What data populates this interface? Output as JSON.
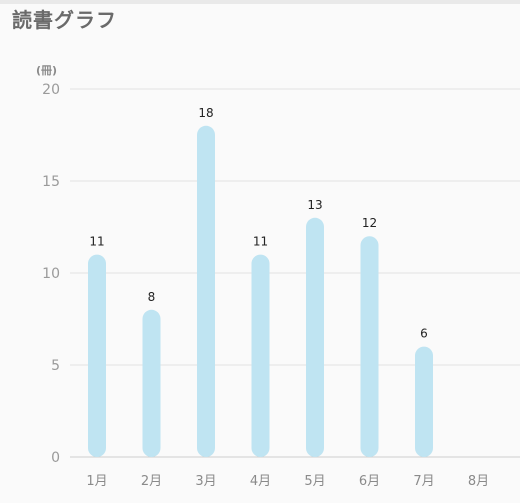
{
  "title": "読書グラフ",
  "chart_data": {
    "type": "bar",
    "title": "読書グラフ",
    "ylabel": "(冊)",
    "xlabel": "",
    "ylim": [
      0,
      20
    ],
    "yticks": [
      0,
      5,
      10,
      15,
      20
    ],
    "categories": [
      "1月",
      "2月",
      "3月",
      "4月",
      "5月",
      "6月",
      "7月",
      "8月"
    ],
    "values": [
      11,
      8,
      18,
      11,
      13,
      12,
      6,
      null
    ],
    "bar_color": "#bfe4f2",
    "grid": true,
    "show_data_labels": true
  }
}
